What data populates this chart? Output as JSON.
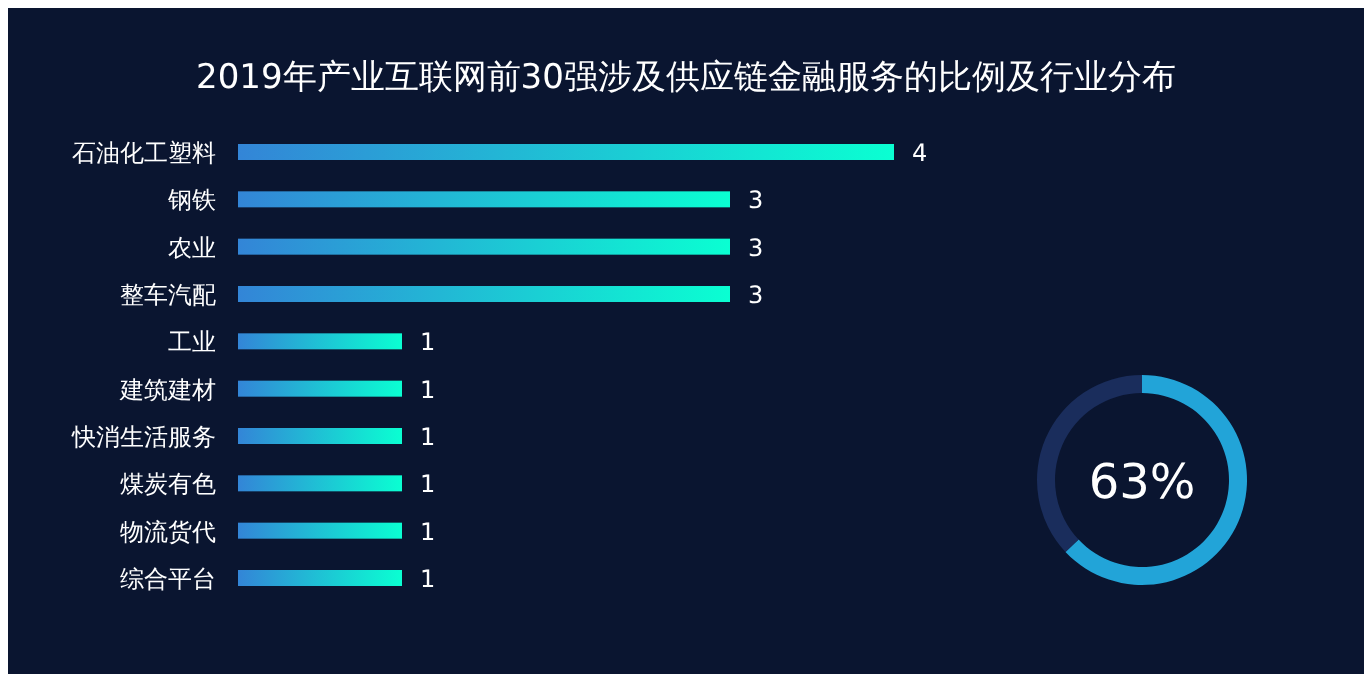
{
  "chart_data": [
    {
      "type": "bar",
      "title": "2019年产业互联网前30强涉及供应链金融服务的比例及行业分布",
      "orientation": "horizontal",
      "categories": [
        "石油化工塑料",
        "钢铁",
        "农业",
        "整车汽配",
        "工业",
        "建筑建材",
        "快消生活服务",
        "煤炭有色",
        "物流货代",
        "综合平台"
      ],
      "series": [
        {
          "color": "#0affd2",
          "values": [
            4,
            3,
            3,
            3,
            1,
            1,
            1,
            1,
            1,
            1
          ]
        }
      ],
      "data_labels": true,
      "tick_labels": "y"
    },
    {
      "type": "donut",
      "categories": [
        null,
        null
      ],
      "values": [
        63,
        37
      ],
      "colors": [
        "#22a4d8",
        "#1a2d5c"
      ],
      "value_labels": [
        "63%",
        null
      ]
    }
  ]
}
